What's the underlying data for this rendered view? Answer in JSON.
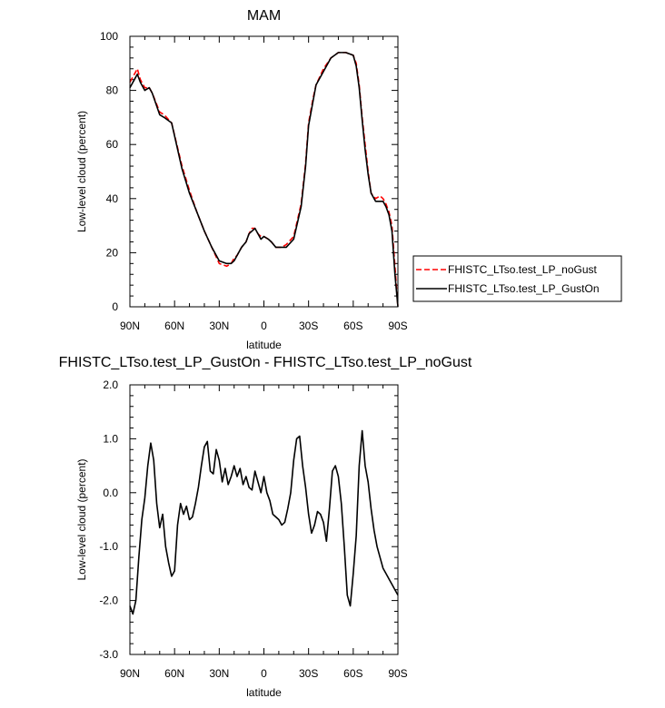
{
  "chart_data": [
    {
      "type": "line",
      "title": "MAM",
      "xlabel": "latitude",
      "ylabel": "Low-level cloud (percent)",
      "xlim": [
        90,
        -90
      ],
      "ylim": [
        0,
        100
      ],
      "xticks": [
        90,
        60,
        30,
        0,
        -30,
        -60,
        -90
      ],
      "xtick_labels": [
        "90N",
        "60N",
        "30N",
        "0",
        "30S",
        "60S",
        "90S"
      ],
      "yticks": [
        0,
        20,
        40,
        60,
        80,
        100
      ],
      "ytick_labels": [
        "0",
        "20",
        "40",
        "60",
        "80",
        "100"
      ],
      "legend_position": "right",
      "series": [
        {
          "name": "FHISTC_LTso.test_LP_noGust",
          "color": "#ff0000",
          "dash": "dashed",
          "x": [
            90,
            87,
            85,
            83,
            80,
            77,
            75,
            70,
            67,
            62,
            55,
            50,
            45,
            40,
            35,
            30,
            25,
            22,
            20,
            18,
            15,
            12,
            10,
            8,
            6,
            4,
            2,
            0,
            -3,
            -5,
            -8,
            -12,
            -15,
            -20,
            -25,
            -28,
            -30,
            -33,
            -35,
            -40,
            -45,
            -50,
            -55,
            -60,
            -62,
            -64,
            -66,
            -68,
            -70,
            -72,
            -75,
            -78,
            -80,
            -82,
            -84,
            -86,
            -88,
            -90
          ],
          "y": [
            83,
            86,
            88,
            84,
            81,
            81,
            79,
            72,
            71,
            68,
            52,
            43,
            35,
            28,
            22,
            16,
            15,
            16,
            18,
            19,
            22,
            24,
            27,
            29,
            29,
            27,
            26,
            26,
            25,
            24,
            22,
            22,
            23,
            26,
            38,
            53,
            68,
            77,
            82,
            88,
            92,
            94,
            94,
            93,
            90,
            82,
            70,
            60,
            50,
            42,
            40,
            41,
            40,
            38,
            35,
            30,
            15,
            0
          ]
        },
        {
          "name": "FHISTC_LTso.test_LP_GustOn",
          "color": "#000000",
          "dash": "solid",
          "x": [
            90,
            87,
            85,
            83,
            80,
            77,
            75,
            70,
            67,
            62,
            55,
            50,
            45,
            40,
            35,
            30,
            25,
            22,
            20,
            18,
            15,
            12,
            10,
            8,
            6,
            4,
            2,
            0,
            -3,
            -5,
            -8,
            -12,
            -15,
            -20,
            -25,
            -28,
            -30,
            -33,
            -35,
            -40,
            -45,
            -50,
            -55,
            -60,
            -62,
            -64,
            -66,
            -68,
            -70,
            -72,
            -75,
            -78,
            -80,
            -82,
            -84,
            -86,
            -88,
            -90
          ],
          "y": [
            81,
            84,
            86,
            83,
            80,
            81,
            79,
            71,
            70,
            68,
            51,
            42,
            35,
            28,
            22,
            17,
            16,
            16,
            17,
            19,
            22,
            24,
            27,
            28,
            29,
            27,
            25,
            26,
            25,
            24,
            22,
            22,
            22,
            25,
            37,
            52,
            67,
            76,
            82,
            87,
            92,
            94,
            94,
            93,
            89,
            81,
            69,
            58,
            49,
            42,
            39,
            39,
            39,
            37,
            34,
            28,
            12,
            0
          ]
        }
      ]
    },
    {
      "type": "line",
      "title": "FHISTC_LTso.test_LP_GustOn - FHISTC_LTso.test_LP_noGust",
      "xlabel": "latitude",
      "ylabel": "Low-level cloud (percent)",
      "xlim": [
        90,
        -90
      ],
      "ylim": [
        -3.0,
        2.0
      ],
      "xticks": [
        90,
        60,
        30,
        0,
        -30,
        -60,
        -90
      ],
      "xtick_labels": [
        "90N",
        "60N",
        "30N",
        "0",
        "30S",
        "60S",
        "90S"
      ],
      "yticks": [
        -3.0,
        -2.0,
        -1.0,
        0.0,
        1.0,
        2.0
      ],
      "ytick_labels": [
        "-3.0",
        "-2.0",
        "-1.0",
        "0.0",
        "1.0",
        "2.0"
      ],
      "series": [
        {
          "color": "#000000",
          "x": [
            90,
            88,
            86,
            84,
            82,
            80,
            78,
            76,
            74,
            72,
            70,
            68,
            66,
            64,
            62,
            60,
            58,
            56,
            54,
            52,
            50,
            48,
            46,
            44,
            42,
            40,
            38,
            36,
            34,
            32,
            30,
            28,
            26,
            24,
            22,
            20,
            18,
            16,
            14,
            12,
            10,
            8,
            6,
            4,
            2,
            0,
            -2,
            -4,
            -6,
            -8,
            -10,
            -12,
            -14,
            -16,
            -18,
            -20,
            -22,
            -24,
            -26,
            -28,
            -30,
            -32,
            -34,
            -36,
            -38,
            -40,
            -42,
            -44,
            -46,
            -48,
            -50,
            -52,
            -54,
            -56,
            -58,
            -60,
            -62,
            -64,
            -66,
            -68,
            -70,
            -72,
            -74,
            -76,
            -78,
            -80,
            -82,
            -84,
            -86,
            -88,
            -90
          ],
          "y": [
            -2.1,
            -2.25,
            -2.0,
            -1.2,
            -0.5,
            -0.1,
            0.5,
            0.92,
            0.6,
            -0.2,
            -0.65,
            -0.4,
            -1.0,
            -1.3,
            -1.55,
            -1.45,
            -0.6,
            -0.2,
            -0.4,
            -0.25,
            -0.5,
            -0.45,
            -0.2,
            0.1,
            0.5,
            0.85,
            0.95,
            0.4,
            0.35,
            0.8,
            0.6,
            0.2,
            0.45,
            0.15,
            0.3,
            0.5,
            0.3,
            0.45,
            0.15,
            0.3,
            0.1,
            0.05,
            0.4,
            0.2,
            0.0,
            0.3,
            0.0,
            -0.15,
            -0.4,
            -0.45,
            -0.5,
            -0.6,
            -0.55,
            -0.3,
            0.0,
            0.6,
            1.0,
            1.05,
            0.5,
            0.1,
            -0.4,
            -0.75,
            -0.6,
            -0.35,
            -0.4,
            -0.55,
            -0.9,
            -0.3,
            0.4,
            0.5,
            0.3,
            -0.2,
            -1.0,
            -1.9,
            -2.1,
            -1.5,
            -0.8,
            0.5,
            1.15,
            0.5,
            0.2,
            -0.3,
            -0.7,
            -1.0,
            -1.2,
            -1.4,
            -1.5,
            -1.6,
            -1.7,
            -1.8,
            -1.9
          ]
        }
      ]
    }
  ]
}
